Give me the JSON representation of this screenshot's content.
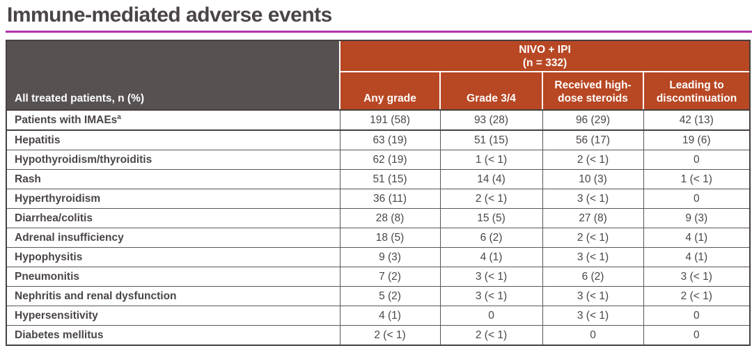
{
  "title": "Immune-mediated adverse events",
  "colors": {
    "title_text": "#4b4546",
    "rule_purple": "#b233ae",
    "header_orange": "#b84723",
    "header_gray": "#575152",
    "border_dark": "#464040",
    "body_text": "#4a4546"
  },
  "table": {
    "left_header": "All treated patients, n (%)",
    "group_header_line1": "NIVO + IPI",
    "group_header_line2": "(n = 332)",
    "columns": [
      "Any grade",
      "Grade 3/4",
      "Received high-dose steroids",
      "Leading to discontinuation"
    ],
    "rows": [
      {
        "label": "Patients with IMAEs",
        "sup": "a",
        "emphasis_divider": true,
        "values": [
          "191 (58)",
          "93 (28)",
          "96 (29)",
          "42 (13)"
        ]
      },
      {
        "label": "Hepatitis",
        "values": [
          "63 (19)",
          "51 (15)",
          "56 (17)",
          "19 (6)"
        ]
      },
      {
        "label": "Hypothyroidism/thyroiditis",
        "values": [
          "62 (19)",
          "1 (< 1)",
          "2 (< 1)",
          "0"
        ]
      },
      {
        "label": "Rash",
        "values": [
          "51 (15)",
          "14 (4)",
          "10 (3)",
          "1 (< 1)"
        ]
      },
      {
        "label": "Hyperthyroidism",
        "values": [
          "36 (11)",
          "2 (< 1)",
          "3 (< 1)",
          "0"
        ]
      },
      {
        "label": "Diarrhea/colitis",
        "values": [
          "28 (8)",
          "15 (5)",
          "27 (8)",
          "9 (3)"
        ]
      },
      {
        "label": "Adrenal insufficiency",
        "values": [
          "18 (5)",
          "6 (2)",
          "2 (< 1)",
          "4 (1)"
        ]
      },
      {
        "label": "Hypophysitis",
        "values": [
          "9 (3)",
          "4 (1)",
          "3 (< 1)",
          "4 (1)"
        ]
      },
      {
        "label": "Pneumonitis",
        "values": [
          "7 (2)",
          "3 (< 1)",
          "6 (2)",
          "3 (< 1)"
        ]
      },
      {
        "label": "Nephritis and renal dysfunction",
        "values": [
          "5 (2)",
          "3 (< 1)",
          "3 (< 1)",
          "2 (< 1)"
        ]
      },
      {
        "label": "Hypersensitivity",
        "values": [
          "4 (1)",
          "0",
          "3 (< 1)",
          "0"
        ]
      },
      {
        "label": "Diabetes mellitus",
        "values": [
          "2 (< 1)",
          "2 (< 1)",
          "0",
          "0"
        ]
      }
    ]
  }
}
